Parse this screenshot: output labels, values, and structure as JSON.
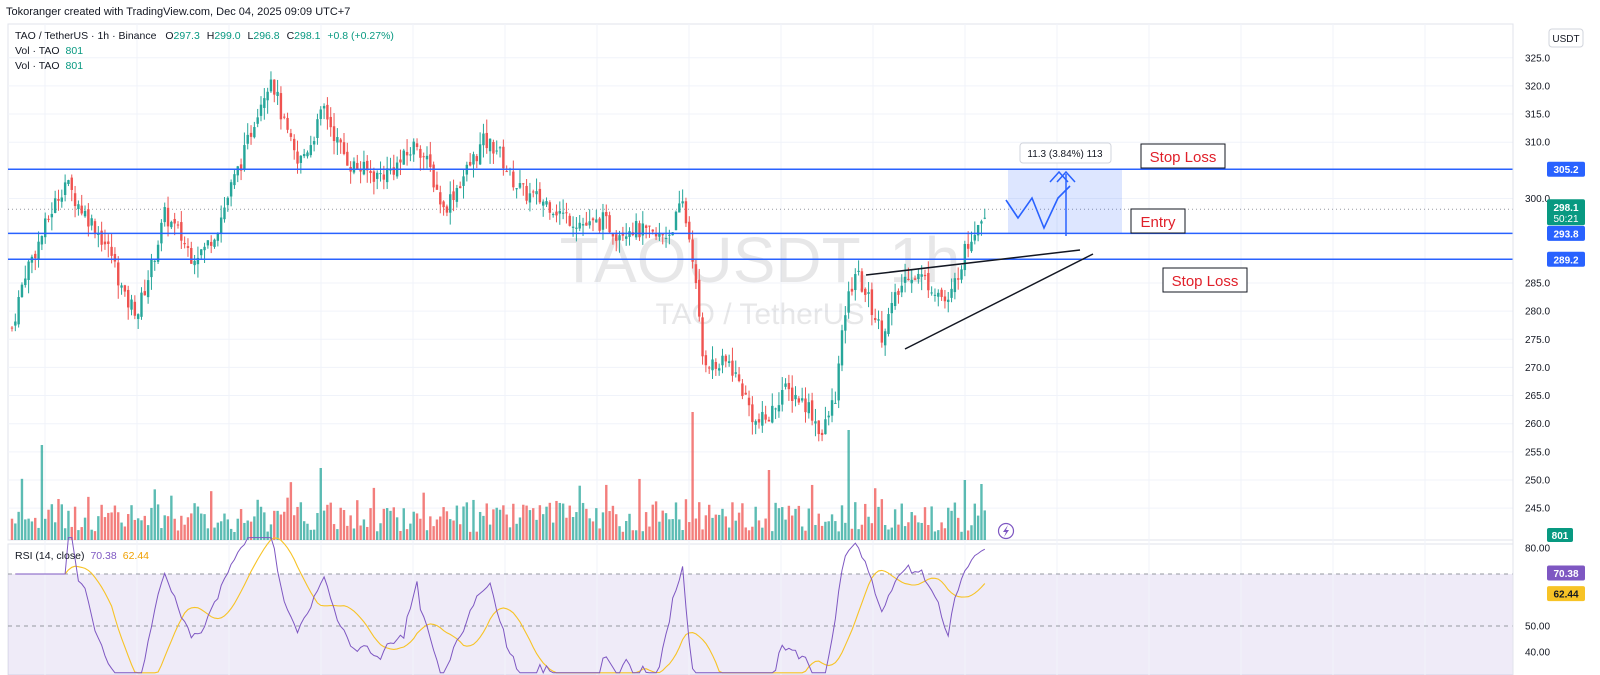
{
  "attribution": "Tokoranger created with TradingView.com, Dec 04, 2025 09:09 UTC+7",
  "legend": {
    "symbol": "TAO / TetherUS · 1h · Binance",
    "o_label": "O",
    "o": "297.3",
    "h_label": "H",
    "h": "299.0",
    "l_label": "L",
    "l": "296.8",
    "c_label": "C",
    "c": "298.1",
    "change": "+0.8 (+0.27%)",
    "vol_rows": [
      {
        "label": "Vol · TAO",
        "value": "801"
      },
      {
        "label": "Vol · TAO",
        "value": "801"
      }
    ]
  },
  "watermark": {
    "main": "TAOUSDT, 1h",
    "sub": "TAO / TetherUS"
  },
  "price_axis": {
    "currency": "USDT",
    "ticks": [
      "325.0",
      "320.0",
      "315.0",
      "310.0",
      "300.0",
      "285.0",
      "280.0",
      "275.0",
      "270.0",
      "265.0",
      "260.0",
      "255.0",
      "250.0",
      "245.0"
    ]
  },
  "price_tags": [
    {
      "price": 305.2,
      "label": "305.2",
      "color": "#2962ff"
    },
    {
      "price": 293.8,
      "label": "293.8",
      "color": "#2962ff"
    },
    {
      "price": 289.2,
      "label": "289.2",
      "color": "#2962ff"
    }
  ],
  "last_price": {
    "price": 298.1,
    "label": "298.1",
    "countdown": "50:21",
    "color": "#089981"
  },
  "volume_tag": {
    "label": "801",
    "color": "#089981"
  },
  "annotations": {
    "stop_loss_top": "Stop Loss",
    "entry": "Entry",
    "stop_loss_bottom": "Stop Loss",
    "measure": "11.3 (3.84%) 113"
  },
  "rsi": {
    "title": "RSI (14, close)",
    "value": "70.38",
    "ma_value": "62.44",
    "ticks": [
      "80.00",
      "50.00",
      "40.00"
    ],
    "value_color": "#7e57c2",
    "ma_color": "#f7c326"
  },
  "colors": {
    "up": "#26a69a",
    "down": "#ef5350",
    "level": "#2962ff",
    "rsi_line": "#7e57c2",
    "rsi_ma": "#f7c326"
  },
  "chart_data": {
    "type": "line",
    "title": "TAO / TetherUS · 1h · Binance",
    "ylabel": "USDT",
    "ylim": [
      236,
      328
    ],
    "approx_close_path": [
      {
        "bar": 0,
        "close": 277
      },
      {
        "bar": 4,
        "close": 287
      },
      {
        "bar": 8,
        "close": 292
      },
      {
        "bar": 12,
        "close": 298
      },
      {
        "bar": 16,
        "close": 303
      },
      {
        "bar": 20,
        "close": 299
      },
      {
        "bar": 25,
        "close": 295
      },
      {
        "bar": 30,
        "close": 290
      },
      {
        "bar": 34,
        "close": 282
      },
      {
        "bar": 38,
        "close": 280
      },
      {
        "bar": 42,
        "close": 288
      },
      {
        "bar": 46,
        "close": 297
      },
      {
        "bar": 50,
        "close": 294
      },
      {
        "bar": 54,
        "close": 290
      },
      {
        "bar": 58,
        "close": 291
      },
      {
        "bar": 62,
        "close": 295
      },
      {
        "bar": 66,
        "close": 302
      },
      {
        "bar": 70,
        "close": 308
      },
      {
        "bar": 74,
        "close": 316
      },
      {
        "bar": 78,
        "close": 322
      },
      {
        "bar": 82,
        "close": 313
      },
      {
        "bar": 86,
        "close": 306
      },
      {
        "bar": 90,
        "close": 310
      },
      {
        "bar": 94,
        "close": 316
      },
      {
        "bar": 98,
        "close": 310
      },
      {
        "bar": 102,
        "close": 306
      },
      {
        "bar": 106,
        "close": 305
      },
      {
        "bar": 110,
        "close": 304
      },
      {
        "bar": 114,
        "close": 305
      },
      {
        "bar": 118,
        "close": 307
      },
      {
        "bar": 122,
        "close": 310
      },
      {
        "bar": 126,
        "close": 305
      },
      {
        "bar": 130,
        "close": 298
      },
      {
        "bar": 134,
        "close": 302
      },
      {
        "bar": 138,
        "close": 306
      },
      {
        "bar": 142,
        "close": 310
      },
      {
        "bar": 146,
        "close": 309
      },
      {
        "bar": 150,
        "close": 304
      },
      {
        "bar": 154,
        "close": 301
      },
      {
        "bar": 158,
        "close": 300
      },
      {
        "bar": 162,
        "close": 299
      },
      {
        "bar": 166,
        "close": 297
      },
      {
        "bar": 170,
        "close": 296
      },
      {
        "bar": 174,
        "close": 295
      },
      {
        "bar": 178,
        "close": 296
      },
      {
        "bar": 182,
        "close": 294
      },
      {
        "bar": 186,
        "close": 295
      },
      {
        "bar": 190,
        "close": 294
      },
      {
        "bar": 194,
        "close": 293
      },
      {
        "bar": 198,
        "close": 294
      },
      {
        "bar": 202,
        "close": 299
      },
      {
        "bar": 205,
        "close": 290
      },
      {
        "bar": 208,
        "close": 272
      },
      {
        "bar": 212,
        "close": 270
      },
      {
        "bar": 216,
        "close": 271
      },
      {
        "bar": 220,
        "close": 266
      },
      {
        "bar": 224,
        "close": 260
      },
      {
        "bar": 228,
        "close": 261
      },
      {
        "bar": 232,
        "close": 266
      },
      {
        "bar": 236,
        "close": 265
      },
      {
        "bar": 240,
        "close": 263
      },
      {
        "bar": 244,
        "close": 258
      },
      {
        "bar": 248,
        "close": 265
      },
      {
        "bar": 251,
        "close": 280
      },
      {
        "bar": 254,
        "close": 287
      },
      {
        "bar": 258,
        "close": 282
      },
      {
        "bar": 262,
        "close": 276
      },
      {
        "bar": 266,
        "close": 282
      },
      {
        "bar": 270,
        "close": 287
      },
      {
        "bar": 274,
        "close": 286
      },
      {
        "bar": 278,
        "close": 284
      },
      {
        "bar": 282,
        "close": 281
      },
      {
        "bar": 286,
        "close": 289
      },
      {
        "bar": 290,
        "close": 295
      },
      {
        "bar": 293,
        "close": 298
      }
    ],
    "levels": [
      {
        "label": "Stop Loss",
        "price": 305.2
      },
      {
        "label": "Entry",
        "price": 293.8
      },
      {
        "label": "Stop Loss",
        "price": 289.2
      }
    ],
    "rsi": {
      "length": 14,
      "value": 70.38,
      "ma": 62.44
    }
  }
}
